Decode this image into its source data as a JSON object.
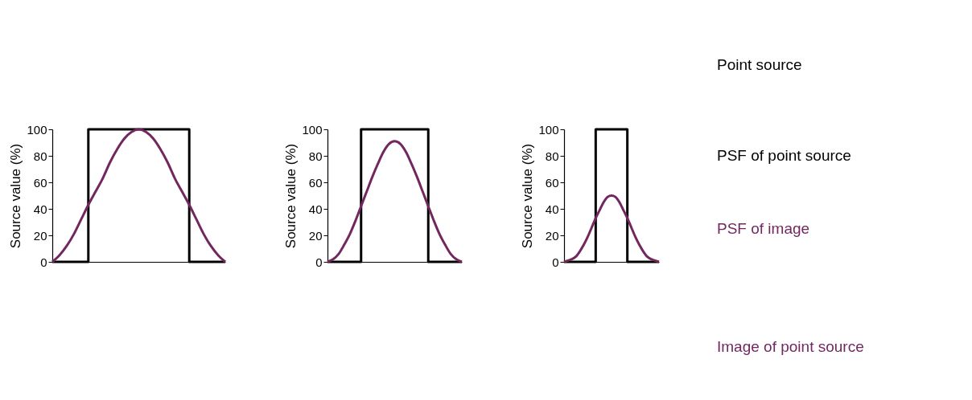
{
  "chart_data": [
    {
      "type": "line",
      "ylabel": "Source value (%)",
      "categories": [
        null,
        null,
        null,
        null,
        null,
        null,
        null,
        null,
        null,
        null,
        null,
        null,
        null,
        null,
        null,
        null,
        null,
        null,
        null,
        null,
        null,
        null,
        null,
        null,
        null
      ],
      "ylim": [
        0,
        100
      ],
      "yticks": [
        0,
        20,
        40,
        60,
        80,
        100
      ],
      "tick_labels": "y",
      "grid": false,
      "marker": "none",
      "line_style": "solid",
      "series": [
        {
          "type": "step",
          "color": "#000000",
          "values": [
            0,
            0,
            0,
            0,
            0,
            100,
            100,
            100,
            100,
            100,
            100,
            100,
            100,
            100,
            100,
            100,
            100,
            100,
            100,
            0,
            0,
            0,
            0,
            0,
            0
          ]
        },
        {
          "type": "line",
          "color": "#72285f",
          "values": [
            0,
            5,
            12,
            21,
            32,
            43,
            53,
            63,
            75,
            85,
            93,
            98,
            100,
            98,
            93,
            85,
            75,
            63,
            53,
            43,
            32,
            21,
            12,
            5,
            0
          ]
        }
      ]
    },
    {
      "type": "line",
      "ylabel": "Source value (%)",
      "categories": [
        null,
        null,
        null,
        null,
        null,
        null,
        null,
        null,
        null,
        null,
        null,
        null,
        null,
        null,
        null,
        null,
        null,
        null,
        null,
        null,
        null,
        null,
        null,
        null,
        null
      ],
      "ylim": [
        0,
        100
      ],
      "yticks": [
        0,
        20,
        40,
        60,
        80,
        100
      ],
      "tick_labels": "y",
      "grid": false,
      "marker": "none",
      "line_style": "solid",
      "series": [
        {
          "type": "step",
          "color": "#000000",
          "values": [
            0,
            0,
            0,
            0,
            0,
            0,
            100,
            100,
            100,
            100,
            100,
            100,
            100,
            100,
            100,
            100,
            100,
            100,
            0,
            0,
            0,
            0,
            0,
            0,
            0
          ]
        },
        {
          "type": "line",
          "color": "#72285f",
          "values": [
            0,
            2,
            6,
            13,
            21,
            31,
            42,
            53,
            64,
            74,
            83,
            89,
            91,
            89,
            83,
            74,
            64,
            53,
            42,
            31,
            21,
            13,
            6,
            2,
            0
          ]
        }
      ]
    },
    {
      "type": "line",
      "ylabel": "Source value (%)",
      "categories": [
        null,
        null,
        null,
        null,
        null,
        null,
        null,
        null,
        null,
        null,
        null,
        null,
        null,
        null,
        null,
        null,
        null,
        null,
        null,
        null,
        null,
        null,
        null,
        null,
        null
      ],
      "ylim": [
        0,
        100
      ],
      "yticks": [
        0,
        20,
        40,
        60,
        80,
        100
      ],
      "tick_labels": "y",
      "grid": false,
      "marker": "none",
      "line_style": "solid",
      "series": [
        {
          "type": "step",
          "color": "#000000",
          "values": [
            0,
            0,
            0,
            0,
            0,
            0,
            0,
            0,
            100,
            100,
            100,
            100,
            100,
            100,
            100,
            100,
            0,
            0,
            0,
            0,
            0,
            0,
            0,
            0,
            0
          ]
        },
        {
          "type": "line",
          "color": "#72285f",
          "values": [
            0,
            1,
            2,
            4,
            8,
            13,
            19,
            26,
            33,
            39,
            45,
            49,
            50,
            49,
            45,
            39,
            33,
            26,
            19,
            13,
            8,
            4,
            2,
            1,
            0
          ]
        }
      ]
    },
    {
      "type": "other",
      "annotations": [
        "Point source",
        "PSF of point source",
        "PSF of image",
        "Image of point source"
      ]
    }
  ]
}
